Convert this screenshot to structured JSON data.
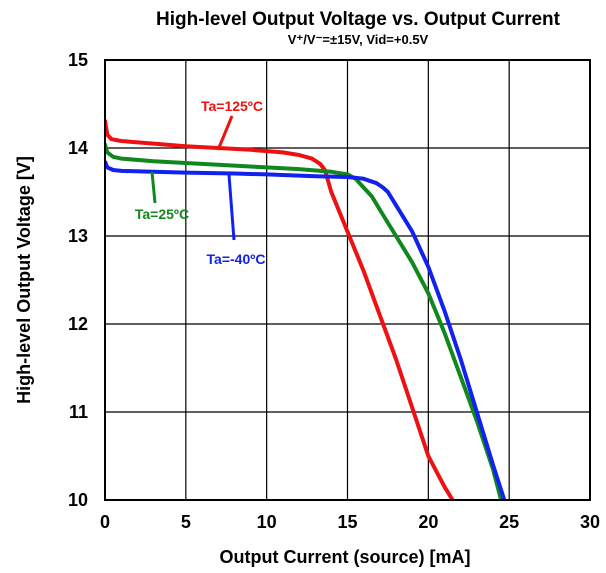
{
  "chart_data": {
    "type": "line",
    "title": "High-level Output Voltage vs. Output Current",
    "subtitle": "V⁺/V⁻=±15V, Vid=+0.5V",
    "xlabel": "Output Current (source) [mA]",
    "ylabel": "High-level Output Voltage  [V]",
    "xlim": [
      0,
      30
    ],
    "ylim": [
      10,
      15
    ],
    "xticks": [
      "0",
      "5",
      "10",
      "15",
      "20",
      "25",
      "30"
    ],
    "yticks": [
      "10",
      "11",
      "12",
      "13",
      "14",
      "15"
    ],
    "grid": true,
    "series": [
      {
        "name": "Ta=125ºC",
        "color": "#ee1111",
        "x": [
          0,
          0.05,
          0.15,
          0.4,
          1,
          3,
          5,
          7,
          9,
          11,
          12,
          12.8,
          13.3,
          13.6,
          14,
          15,
          16,
          17,
          18,
          19,
          20,
          21,
          21.5
        ],
        "y": [
          14.32,
          14.25,
          14.15,
          14.1,
          14.08,
          14.05,
          14.02,
          14.0,
          13.98,
          13.95,
          13.92,
          13.88,
          13.82,
          13.75,
          13.5,
          13.05,
          12.6,
          12.1,
          11.6,
          11.05,
          10.5,
          10.15,
          10.0
        ]
      },
      {
        "name": "Ta=25ºC",
        "color": "#11881d",
        "x": [
          0,
          0.05,
          0.15,
          0.5,
          1,
          3,
          5,
          8,
          10,
          12,
          14,
          15,
          15.5,
          16,
          16.5,
          17,
          18,
          19,
          20,
          21,
          22,
          23,
          24,
          24.5
        ],
        "y": [
          14.05,
          14.0,
          13.95,
          13.9,
          13.88,
          13.85,
          13.83,
          13.8,
          13.78,
          13.76,
          13.73,
          13.7,
          13.65,
          13.55,
          13.45,
          13.3,
          13.0,
          12.7,
          12.35,
          11.9,
          11.4,
          10.9,
          10.35,
          10.0
        ]
      },
      {
        "name": "Ta=-40ºC",
        "color": "#1122ee",
        "x": [
          0,
          0.05,
          0.15,
          0.5,
          1,
          3,
          5,
          8,
          10,
          13,
          15,
          16,
          16.8,
          17.2,
          17.5,
          18,
          19,
          20,
          21,
          22,
          23,
          24,
          24.7
        ],
        "y": [
          13.85,
          13.82,
          13.78,
          13.75,
          13.74,
          13.73,
          13.72,
          13.71,
          13.7,
          13.68,
          13.67,
          13.65,
          13.6,
          13.55,
          13.5,
          13.35,
          13.05,
          12.65,
          12.15,
          11.6,
          11.0,
          10.4,
          10.0
        ]
      }
    ],
    "annotations": [
      {
        "text": "Ta=125ºC",
        "series": 0
      },
      {
        "text": "Ta=25ºC",
        "series": 1
      },
      {
        "text": "Ta=-40ºC",
        "series": 2
      }
    ]
  }
}
